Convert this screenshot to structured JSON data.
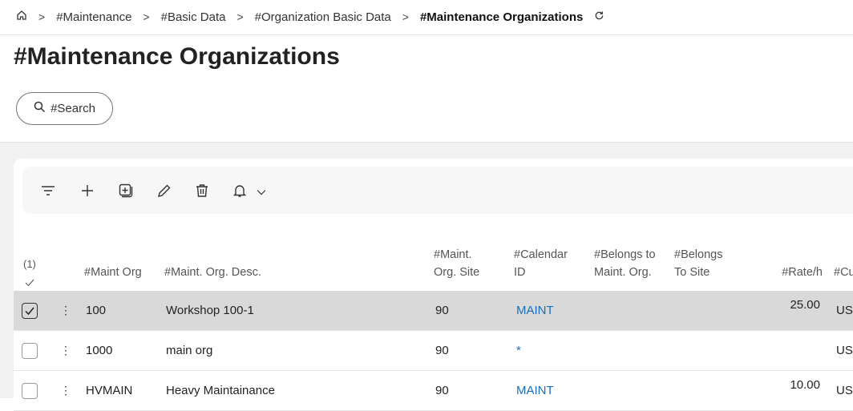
{
  "breadcrumb": {
    "items": [
      "#Maintenance",
      "#Basic Data",
      "#Organization Basic Data"
    ],
    "current": "#Maintenance Organizations"
  },
  "page": {
    "title": "#Maintenance Organizations",
    "search_label": "#Search"
  },
  "toolbar": {
    "icons": [
      "filter-icon",
      "add-icon",
      "duplicate-icon",
      "edit-icon",
      "delete-icon",
      "bell-icon"
    ]
  },
  "table": {
    "selected_count": "(1)",
    "headers": {
      "maint_org": "#Maint Org",
      "desc": "#Maint. Org. Desc.",
      "site1": "#Maint.",
      "site2": "Org. Site",
      "cal1": "#Calendar",
      "cal2": "ID",
      "bel1": "#Belongs to",
      "bel2": "Maint. Org.",
      "bs1": "#Belongs",
      "bs2": "To Site",
      "rate": "#Rate/h",
      "cur": "#Cu"
    },
    "rows": [
      {
        "selected": true,
        "org": "100",
        "desc": "Workshop 100-1",
        "site": "90",
        "calendar": "MAINT",
        "belongs_org": "",
        "belongs_site": "",
        "rate": "25.00",
        "currency": "US"
      },
      {
        "selected": false,
        "org": "1000",
        "desc": "main org",
        "site": "90",
        "calendar": "*",
        "belongs_org": "",
        "belongs_site": "",
        "rate": "",
        "currency": "US"
      },
      {
        "selected": false,
        "org": "HVMAIN",
        "desc": "Heavy Maintainance",
        "site": "90",
        "calendar": "MAINT",
        "belongs_org": "",
        "belongs_site": "",
        "rate": "10.00",
        "currency": "US"
      }
    ]
  },
  "colors": {
    "link": "#1b6fc0",
    "selected_row": "#d9d9d9"
  }
}
